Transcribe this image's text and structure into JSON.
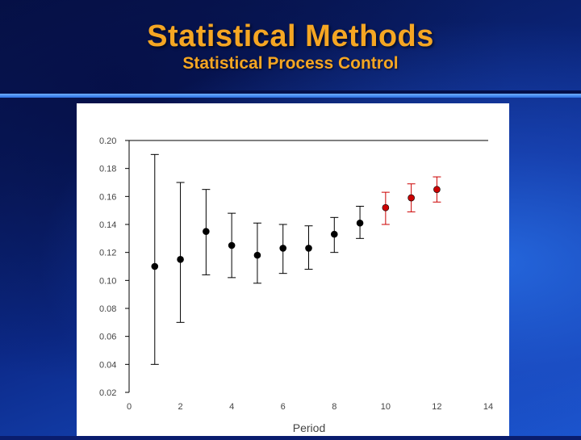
{
  "slide": {
    "title": "Statistical Methods",
    "subtitle": "Statistical Process Control"
  },
  "colors": {
    "title": "#f5a623",
    "in_control": "#000000",
    "out_of_control": "#cc0000"
  },
  "chart_data": {
    "type": "scatter",
    "title": "",
    "xlabel": "Period",
    "ylabel": "",
    "xlim": [
      0,
      14
    ],
    "ylim": [
      0.02,
      0.2
    ],
    "xticks": [
      "0",
      "2",
      "4",
      "6",
      "8",
      "10",
      "12",
      "14"
    ],
    "yticks": [
      "0.02",
      "0.04",
      "0.06",
      "0.08",
      "0.10",
      "0.12",
      "0.14",
      "0.16",
      "0.18",
      "0.20"
    ],
    "grid": false,
    "reference_line": 0.2,
    "points": [
      {
        "x": 1,
        "y": 0.11,
        "low": 0.04,
        "high": 0.19,
        "status": "in_control"
      },
      {
        "x": 2,
        "y": 0.115,
        "low": 0.07,
        "high": 0.17,
        "status": "in_control"
      },
      {
        "x": 3,
        "y": 0.135,
        "low": 0.104,
        "high": 0.165,
        "status": "in_control"
      },
      {
        "x": 4,
        "y": 0.125,
        "low": 0.102,
        "high": 0.148,
        "status": "in_control"
      },
      {
        "x": 5,
        "y": 0.118,
        "low": 0.098,
        "high": 0.141,
        "status": "in_control"
      },
      {
        "x": 6,
        "y": 0.123,
        "low": 0.105,
        "high": 0.14,
        "status": "in_control"
      },
      {
        "x": 7,
        "y": 0.123,
        "low": 0.108,
        "high": 0.139,
        "status": "in_control"
      },
      {
        "x": 8,
        "y": 0.133,
        "low": 0.12,
        "high": 0.145,
        "status": "in_control"
      },
      {
        "x": 9,
        "y": 0.141,
        "low": 0.13,
        "high": 0.153,
        "status": "in_control"
      },
      {
        "x": 10,
        "y": 0.152,
        "low": 0.14,
        "high": 0.163,
        "status": "out_of_control"
      },
      {
        "x": 11,
        "y": 0.159,
        "low": 0.149,
        "high": 0.169,
        "status": "out_of_control"
      },
      {
        "x": 12,
        "y": 0.165,
        "low": 0.156,
        "high": 0.174,
        "status": "out_of_control"
      }
    ]
  }
}
